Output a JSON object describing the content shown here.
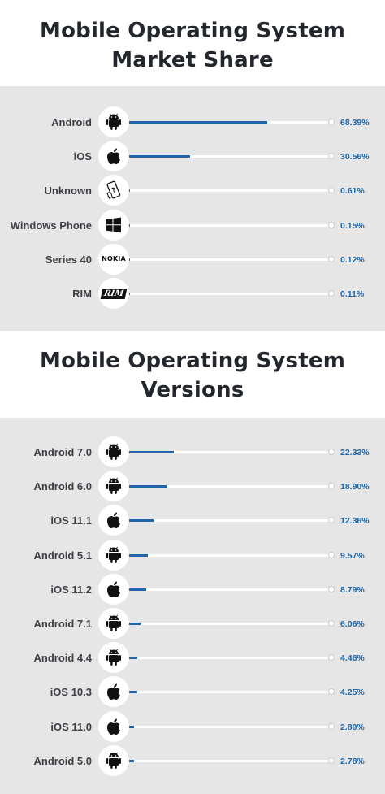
{
  "chart_data": [
    {
      "type": "bar",
      "title": "Mobile Operating System Market Share",
      "categories": [
        "Android",
        "iOS",
        "Unknown",
        "Windows Phone",
        "Series 40",
        "RIM"
      ],
      "values": [
        68.39,
        30.56,
        0.61,
        0.15,
        0.12,
        0.11
      ],
      "value_labels": [
        "68.39%",
        "30.56%",
        "0.61%",
        "0.15%",
        "0.12%",
        "0.11%"
      ],
      "icons": [
        "android-icon",
        "apple-icon",
        "unknown-phone-icon",
        "windows-icon",
        "nokia-logo",
        "rim-logo"
      ],
      "icon_text": [
        "",
        "",
        "",
        "",
        "NOKIA",
        "RIM"
      ],
      "ylim": [
        0,
        100
      ]
    },
    {
      "type": "bar",
      "title": "Mobile Operating System Versions",
      "categories": [
        "Android 7.0",
        "Android 6.0",
        "iOS 11.1",
        "Android 5.1",
        "iOS 11.2",
        "Android 7.1",
        "Android 4.4",
        "iOS 10.3",
        "iOS 11.0",
        "Android 5.0"
      ],
      "values": [
        22.33,
        18.9,
        12.36,
        9.57,
        8.79,
        6.06,
        4.46,
        4.25,
        2.89,
        2.78
      ],
      "value_labels": [
        "22.33%",
        "18.90%",
        "12.36%",
        "9.57%",
        "8.79%",
        "6.06%",
        "4.46%",
        "4.25%",
        "2.89%",
        "2.78%"
      ],
      "icons": [
        "android-icon",
        "android-icon",
        "apple-icon",
        "android-icon",
        "apple-icon",
        "android-icon",
        "android-icon",
        "apple-icon",
        "apple-icon",
        "android-icon"
      ],
      "ylim": [
        0,
        100
      ]
    }
  ],
  "colors": {
    "bar": "#1f66a6",
    "value_text": "#1f66a6",
    "panel_bg": "#e6e6e6",
    "title_text": "#23262d"
  }
}
